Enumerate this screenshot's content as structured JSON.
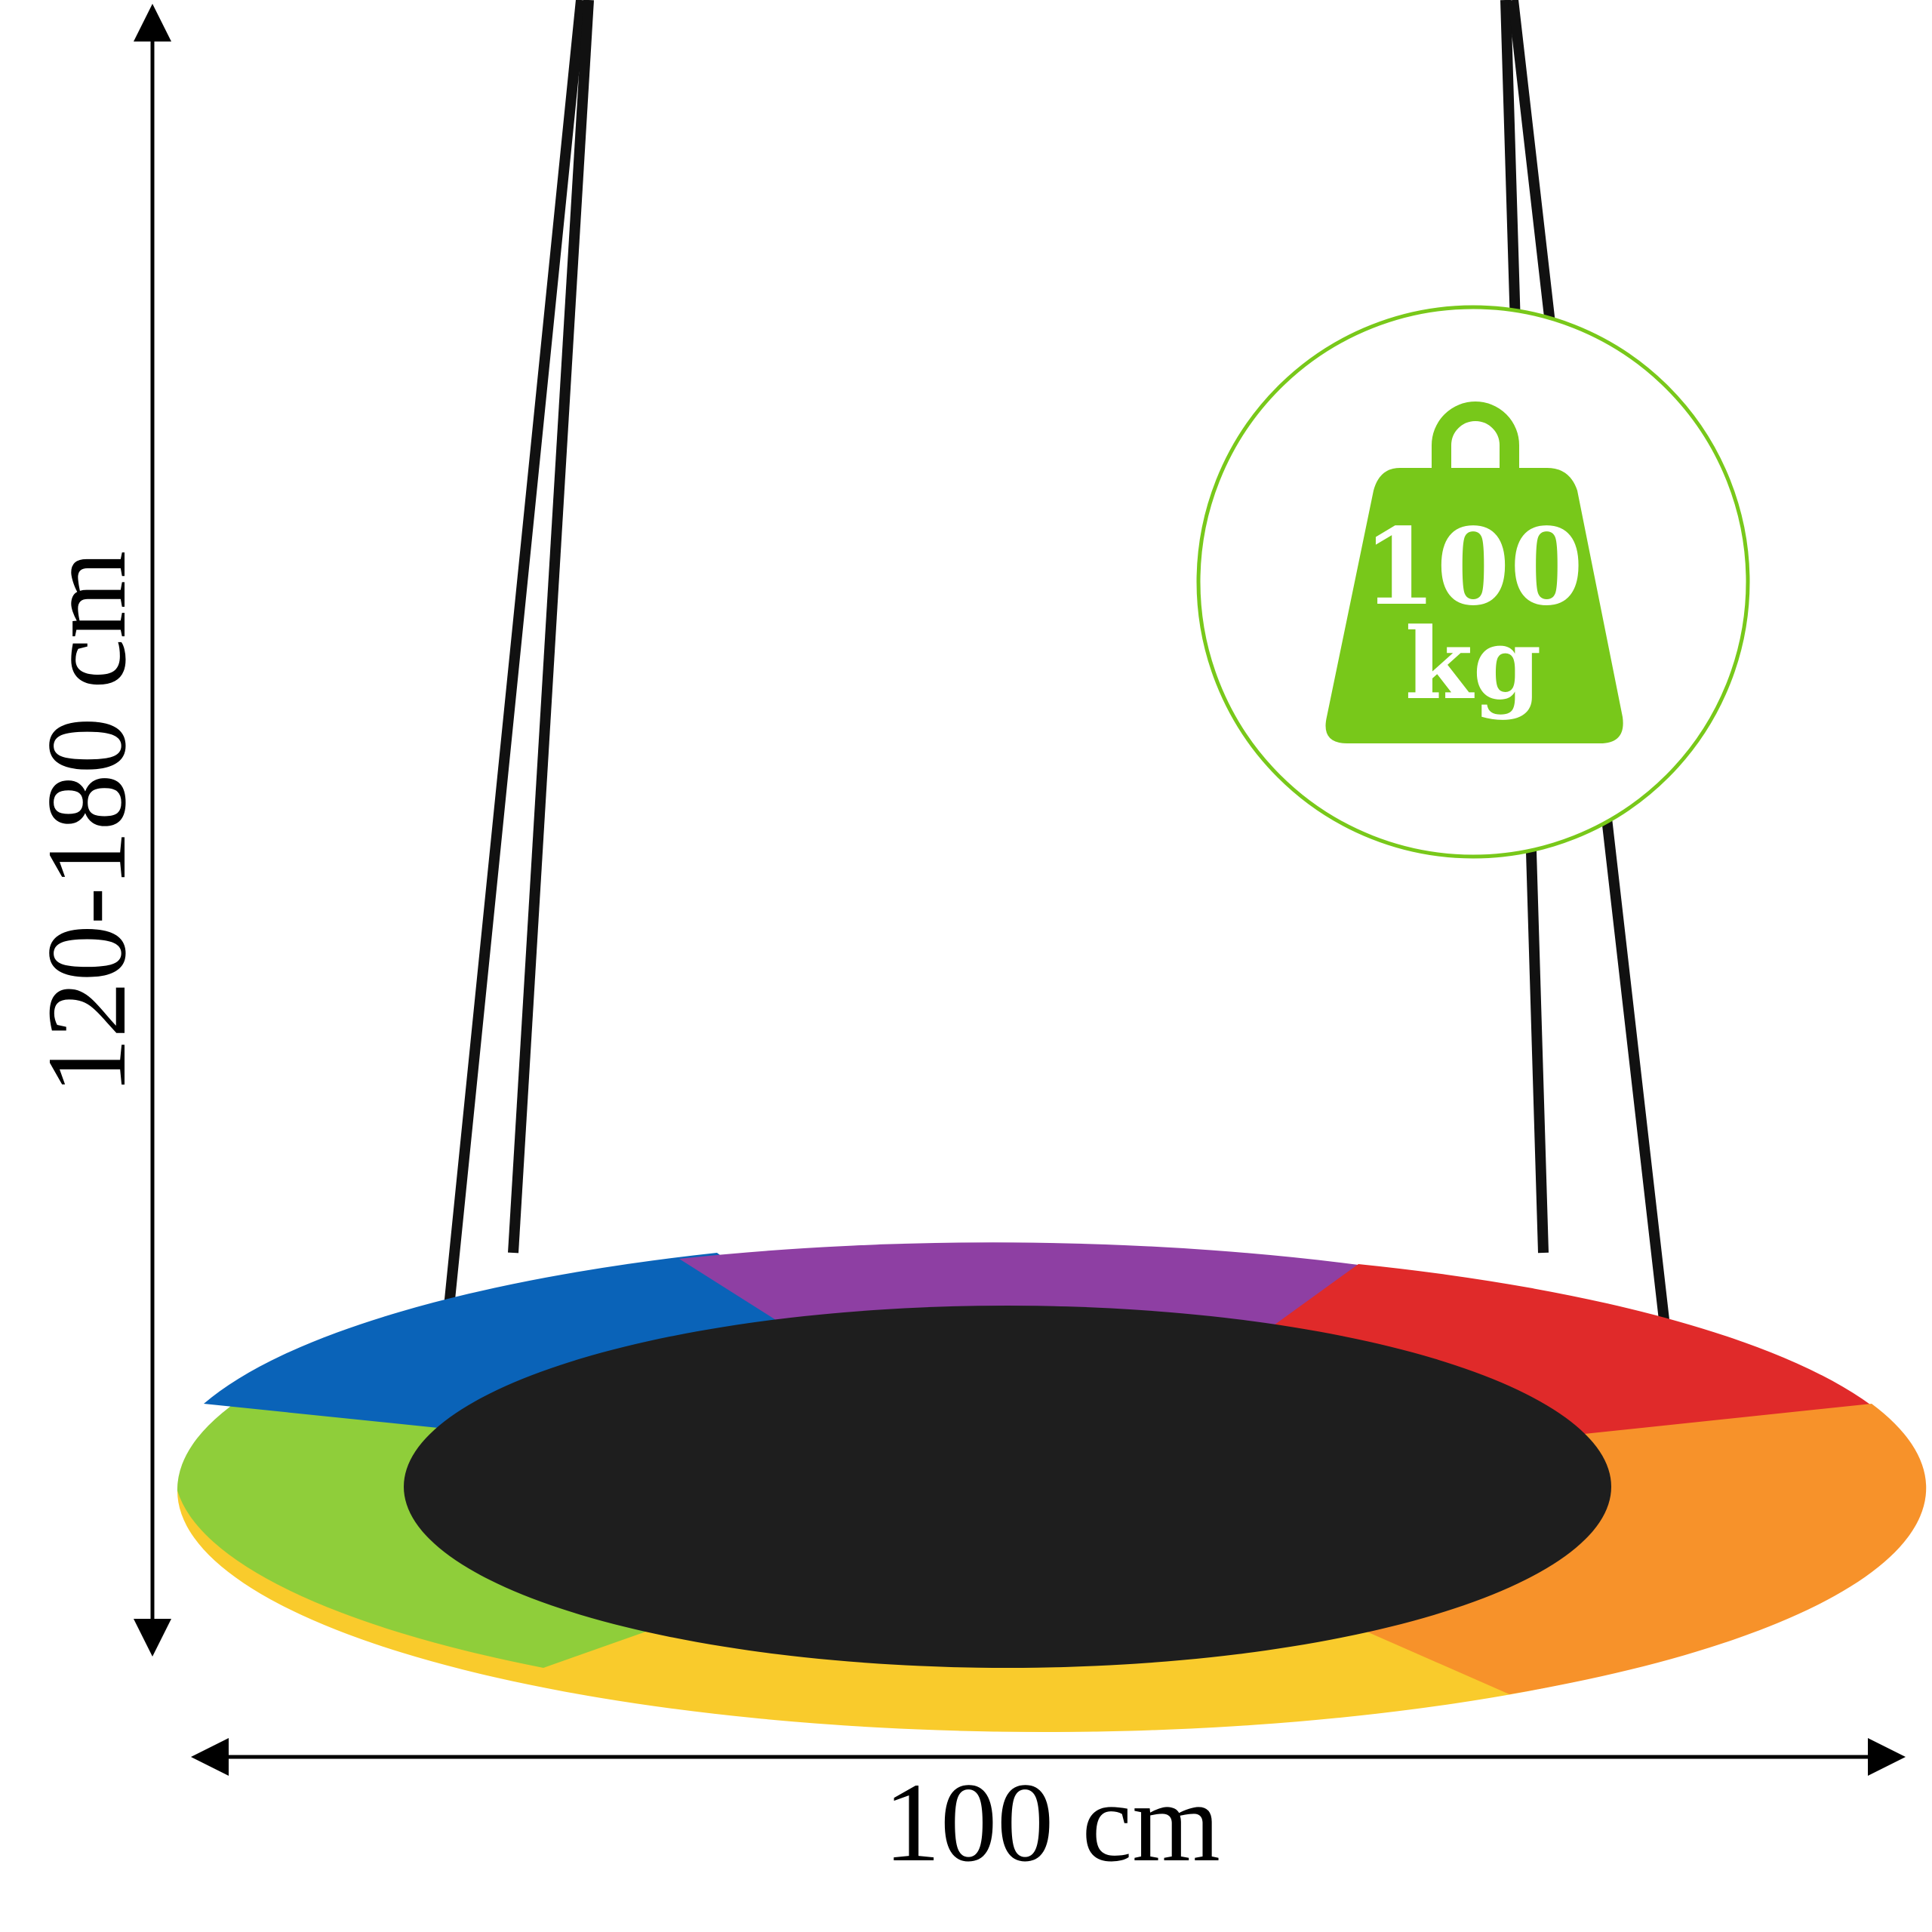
{
  "dimensions": {
    "height_label": "120-180 cm",
    "width_label": "100 cm"
  },
  "badge": {
    "weight_value": "100",
    "weight_unit": "kg",
    "icon": "weight-icon",
    "color": "#78c81a"
  },
  "swing": {
    "segment_colors": [
      "#0a63b8",
      "#8e3fa3",
      "#e02a2a",
      "#f7922a",
      "#f9cb2c",
      "#8fce3a"
    ],
    "seat_color": "#1e1e1e",
    "rope_color": "#111111"
  }
}
